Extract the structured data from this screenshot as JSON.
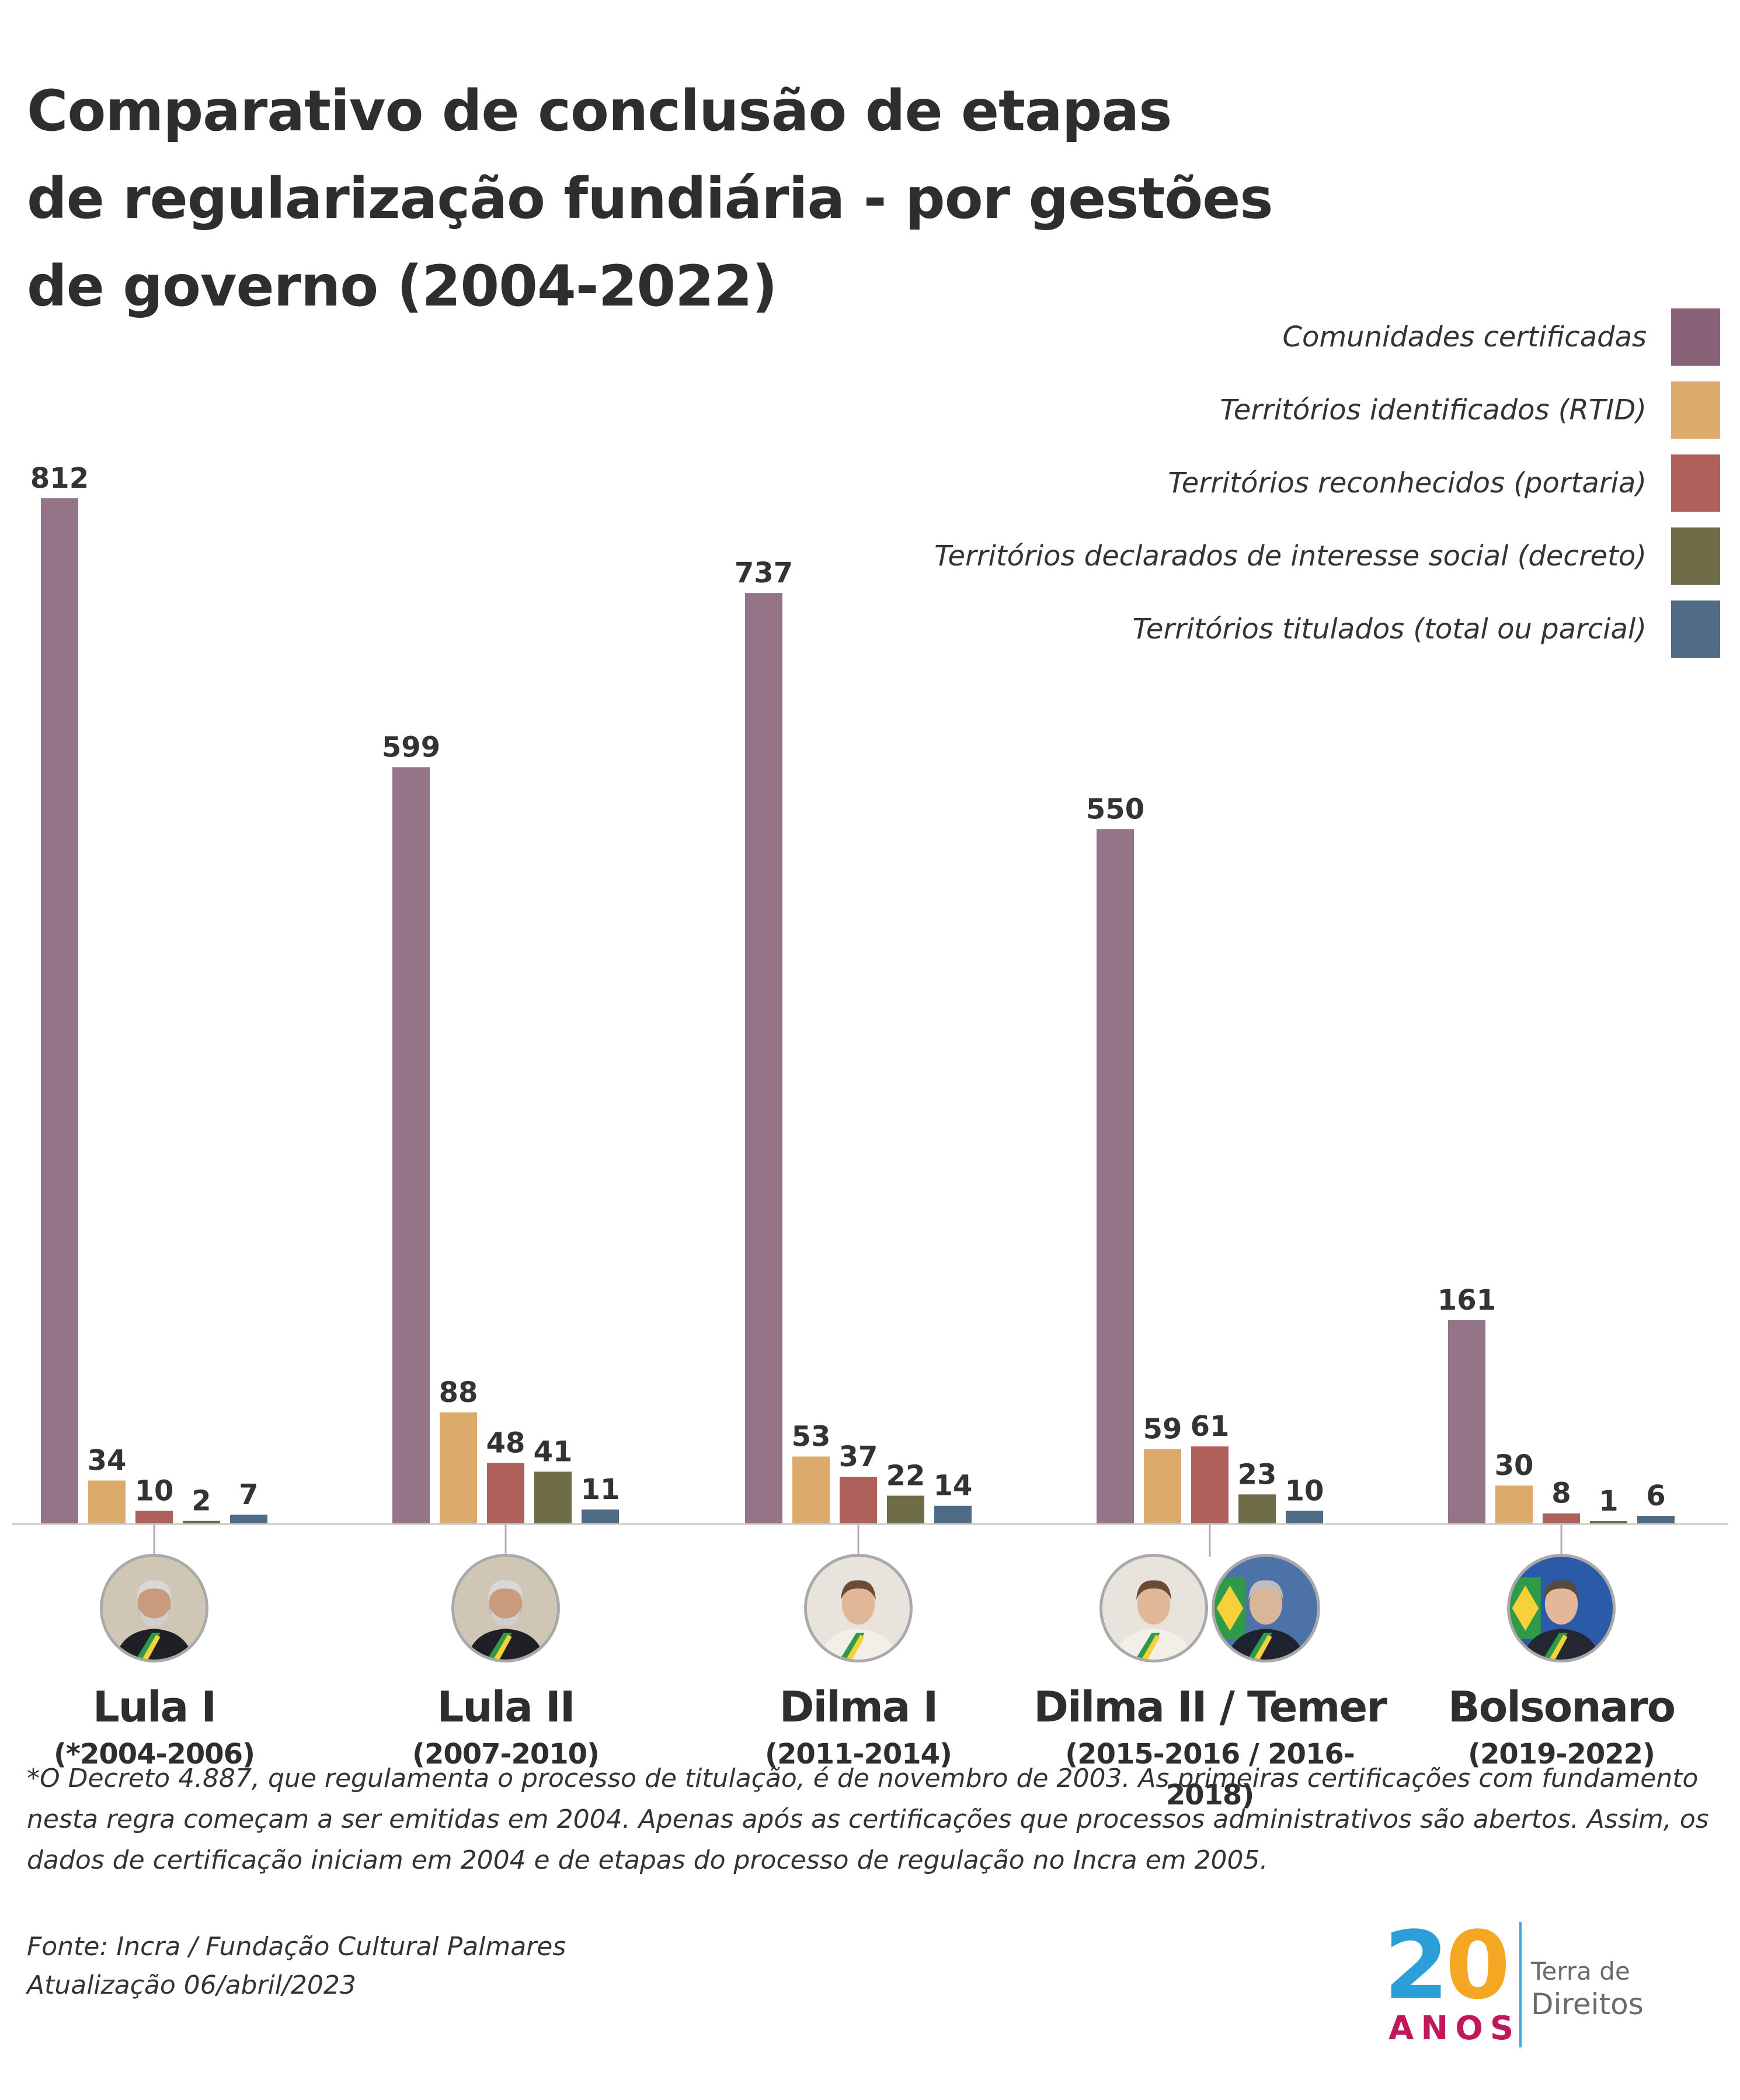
{
  "title_lines": [
    "Comparativo de conclusão de etapas",
    "de regularização fundiária - por gestões",
    "de governo (2004-2022)"
  ],
  "legend": [
    {
      "label": "Comunidades certificadas",
      "color": "#8a6278"
    },
    {
      "label": "Territórios identificados (RTID)",
      "color": "#dcab6b"
    },
    {
      "label": "Territórios reconhecidos (portaria)",
      "color": "#b0605a"
    },
    {
      "label": "Territórios declarados de interesse social (decreto)",
      "color": "#6e6d48"
    },
    {
      "label": "Territórios titulados (total ou parcial)",
      "color": "#4f6b86"
    }
  ],
  "chart_data": {
    "type": "bar",
    "categories": [
      "Lula I",
      "Lula II",
      "Dilma I",
      "Dilma II / Temer",
      "Bolsonaro"
    ],
    "periods": [
      "(*2004-2006)",
      "(2007-2010)",
      "(2011-2014)",
      "(2015-2016 / 2016-2018)",
      "(2019-2022)"
    ],
    "series": [
      {
        "name": "Comunidades certificadas",
        "color": "#957488",
        "values": [
          812,
          599,
          737,
          550,
          161
        ]
      },
      {
        "name": "Territórios identificados (RTID)",
        "color": "#dcab6b",
        "values": [
          34,
          88,
          53,
          59,
          30
        ]
      },
      {
        "name": "Territórios reconhecidos (portaria)",
        "color": "#b0605a",
        "values": [
          10,
          48,
          37,
          61,
          8
        ]
      },
      {
        "name": "Territórios declarados de interesse social (decreto)",
        "color": "#6e6d48",
        "values": [
          2,
          41,
          22,
          23,
          1
        ]
      },
      {
        "name": "Territórios titulados (total ou parcial)",
        "color": "#4f6b86",
        "values": [
          7,
          11,
          14,
          10,
          6
        ]
      }
    ],
    "ylim": [
      0,
      812
    ],
    "grid": false,
    "legend_position": "top-right"
  },
  "avatars": [
    [
      {
        "icon": "lula-portrait-icon"
      }
    ],
    [
      {
        "icon": "lula-portrait-icon"
      }
    ],
    [
      {
        "icon": "dilma-portrait-icon"
      }
    ],
    [
      {
        "icon": "dilma-portrait-icon"
      },
      {
        "icon": "temer-portrait-icon"
      }
    ],
    [
      {
        "icon": "bolsonaro-portrait-icon"
      }
    ]
  ],
  "footnote": "*O Decreto 4.887, que regulamenta o processo de titulação, é de novembro de 2003. As primeiras certificações com fundamento nesta regra começam a ser emitidas em 2004. Apenas após as certificações que processos administrativos são abertos. Assim, os dados de certificação iniciam em 2004 e de etapas do processo de regulação no Incra em 2005.",
  "source_lines": [
    "Fonte: Incra / Fundação Cultural Palmares",
    "Atualização 06/abril/2023"
  ],
  "logo": {
    "number_2": "2",
    "number_0": "0",
    "anos": "ANOS",
    "terra": "Terra de",
    "direitos": "Direitos"
  }
}
